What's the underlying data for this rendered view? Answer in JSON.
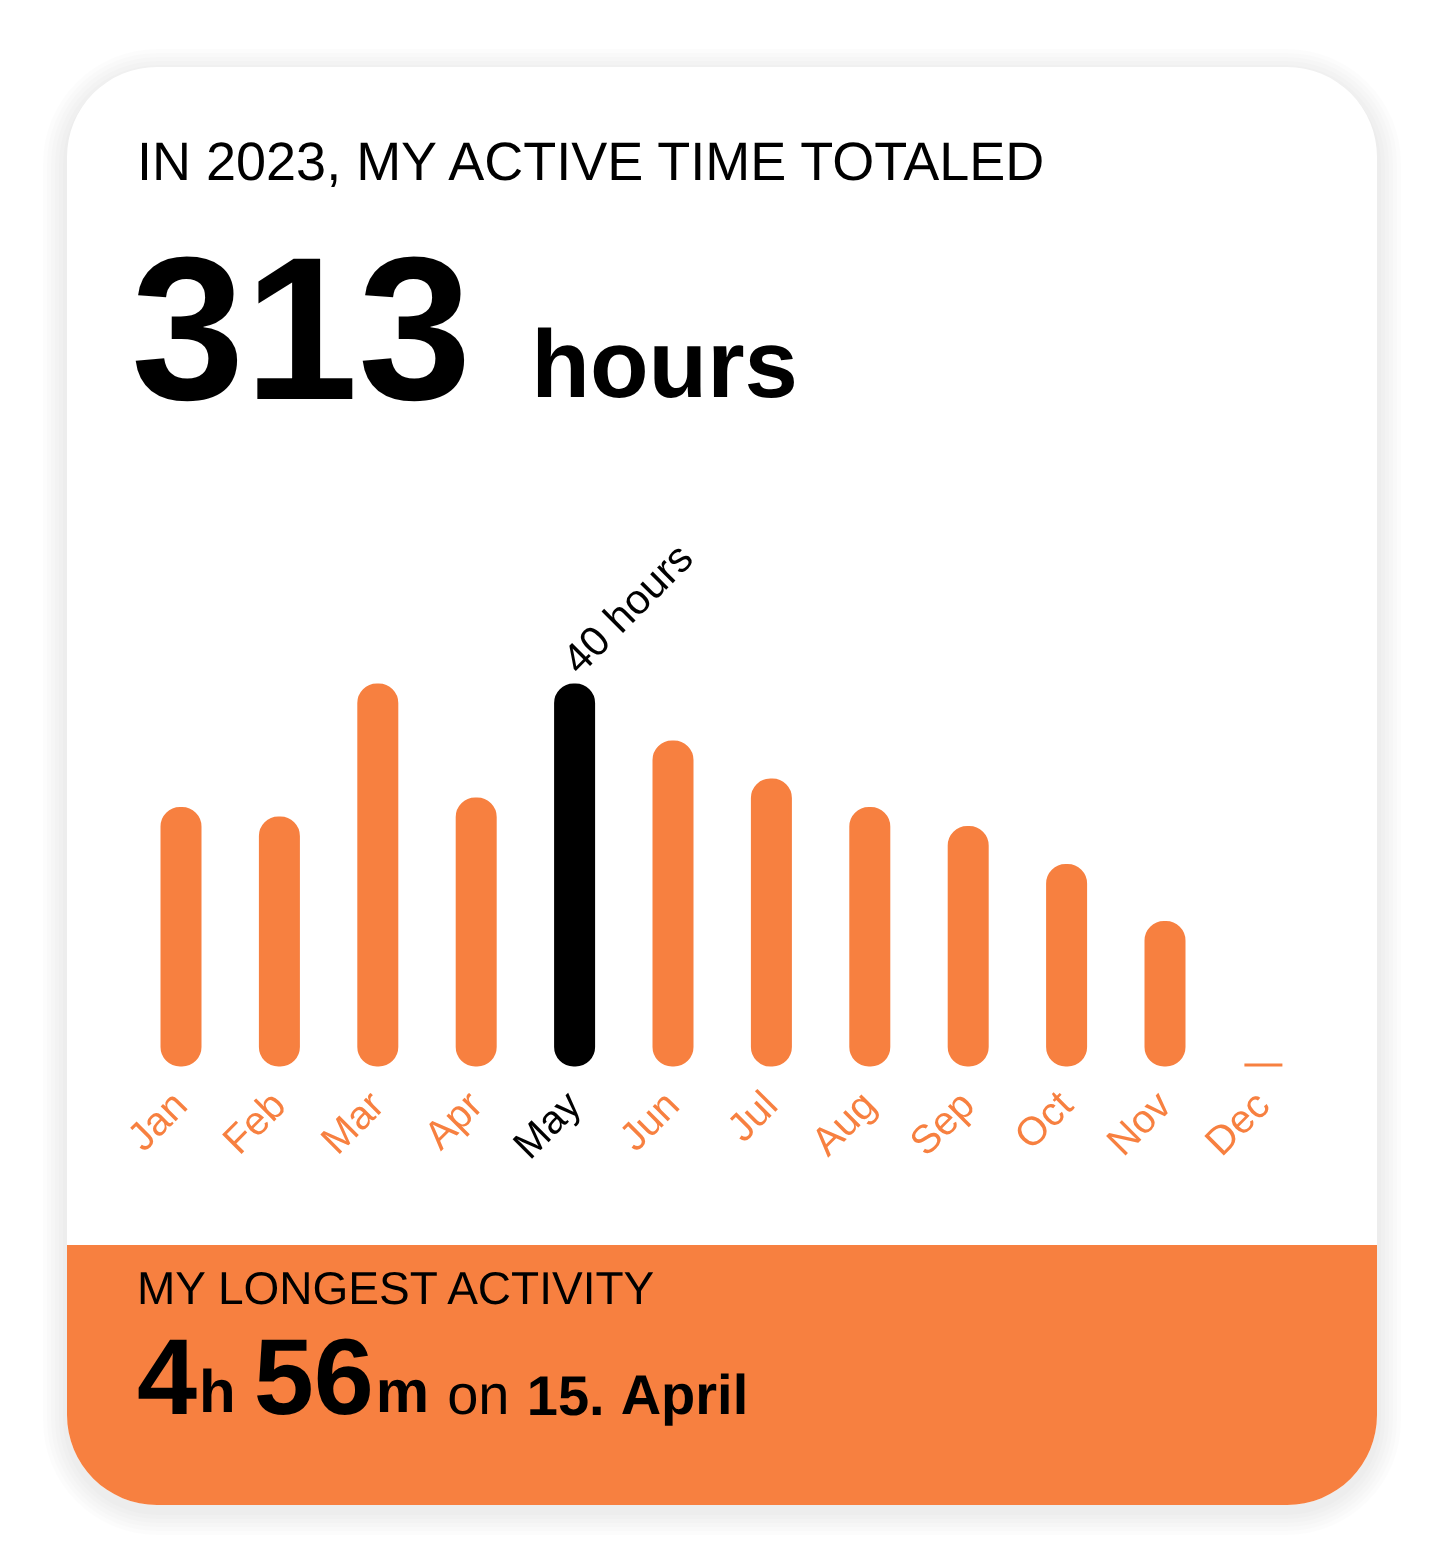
{
  "chart_data": {
    "type": "bar",
    "title": "IN 2023, MY ACTIVE TIME TOTALED",
    "subtitle": "313 hours",
    "categories": [
      "Jan",
      "Feb",
      "Mar",
      "Apr",
      "May",
      "Jun",
      "Jul",
      "Aug",
      "Sep",
      "Oct",
      "Nov",
      "Dec"
    ],
    "values": [
      27,
      26,
      40,
      28,
      40,
      34,
      30,
      27,
      25,
      21,
      15,
      0
    ],
    "colors": [
      "#f78040",
      "#f78040",
      "#f78040",
      "#f78040",
      "#000000",
      "#f78040",
      "#f78040",
      "#f78040",
      "#f78040",
      "#f78040",
      "#f78040",
      "#f78040"
    ],
    "value_labels": [
      null,
      null,
      null,
      null,
      "40 hours",
      null,
      null,
      null,
      null,
      null,
      null,
      null
    ],
    "annotations": [
      "MY LONGEST ACTIVITY",
      "4h 56m on 15. April"
    ]
  }
}
